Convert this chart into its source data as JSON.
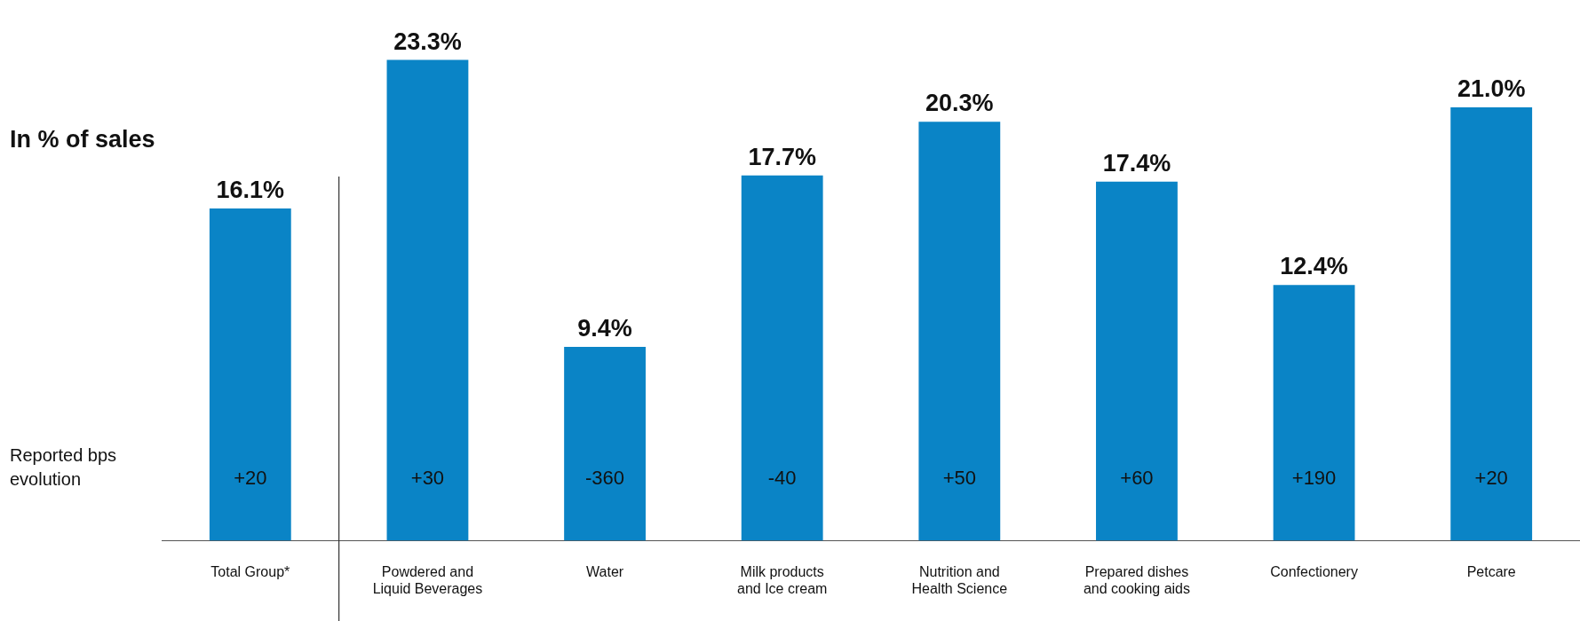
{
  "chart_data": {
    "type": "bar",
    "ylabel": "In % of sales",
    "categories": [
      "Total Group*",
      "Powdered and Liquid Beverages",
      "Water",
      "Milk products and Ice cream",
      "Nutrition and Health Science",
      "Prepared dishes and cooking aids",
      "Confectionery",
      "Petcare"
    ],
    "values": [
      16.1,
      23.3,
      9.4,
      17.7,
      20.3,
      17.4,
      12.4,
      21.0
    ],
    "value_labels": [
      "16.1%",
      "23.3%",
      "9.4%",
      "17.7%",
      "20.3%",
      "17.4%",
      "12.4%",
      "21.0%"
    ],
    "color": "#0a84c6",
    "grid": false,
    "legend": false,
    "tick_labels": "x",
    "annotations": [
      "Reported bps evolution",
      "+20",
      "+30",
      "-360",
      "-40",
      "+50",
      "+60",
      "+190",
      "+20"
    ]
  }
}
